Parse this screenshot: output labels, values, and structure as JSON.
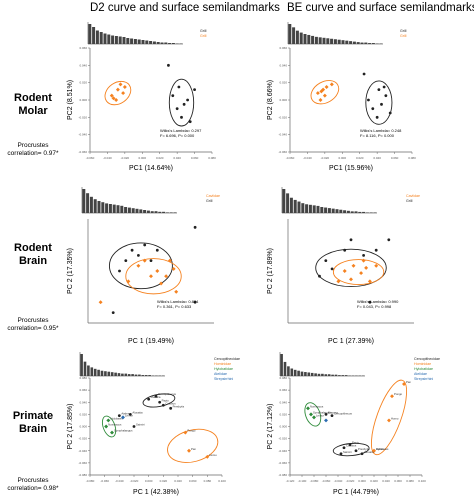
{
  "column_titles": [
    "D2 curve and surface semilandmarks",
    "BE curve and surface semilandmarks"
  ],
  "rows": [
    {
      "title_line1": "Rodent",
      "title_line2": "Molar",
      "corr_line1": "Procrustes",
      "corr_line2": "correlation= 0.97*"
    },
    {
      "title_line1": "Rodent",
      "title_line2": "Brain",
      "corr_line1": "Procrustes",
      "corr_line2": "correlation= 0.95*"
    },
    {
      "title_line1": "Primate",
      "title_line2": "Brain",
      "corr_line1": "Procrustes",
      "corr_line2": "correlation= 0.98*"
    }
  ],
  "colors": {
    "orange": "#f58220",
    "black": "#222222",
    "blue": "#2b6cb0",
    "green": "#2e8b3a",
    "axis": "#666666"
  },
  "chart_data": [
    {
      "type": "scatter",
      "panel": "rodent-molar-d2",
      "xlabel": "PC1 (14.64%)",
      "ylabel": "PC2 (8.51%)",
      "xlim": [
        -0.06,
        0.08
      ],
      "ylim": [
        -0.06,
        0.06
      ],
      "xticks": [
        "-0.060",
        "-0.040",
        "-0.020",
        "0.000",
        "0.020",
        "0.040",
        "0.060",
        "0.080"
      ],
      "yticks": [
        "0.060",
        "0.040",
        "0.020",
        "0.000",
        "-0.020",
        "-0.040",
        "-0.060"
      ],
      "legend": [
        "Grill",
        "Grill"
      ],
      "annotation_line1": "Wilks's Lambda= 0.297",
      "annotation_line2": "F= 6.696, P= 0.000",
      "series": [
        {
          "color": "orange",
          "points": [
            [
              -0.035,
              0.005
            ],
            [
              -0.03,
              0.0
            ],
            [
              -0.028,
              0.012
            ],
            [
              -0.025,
              0.018
            ],
            [
              -0.022,
              0.008
            ],
            [
              -0.02,
              0.015
            ],
            [
              -0.033,
              0.002
            ]
          ]
        },
        {
          "color": "black",
          "points": [
            [
              0.035,
              0.005
            ],
            [
              0.04,
              -0.01
            ],
            [
              0.045,
              -0.02
            ],
            [
              0.052,
              0.0
            ],
            [
              0.048,
              -0.005
            ],
            [
              0.042,
              0.015
            ],
            [
              0.06,
              0.012
            ],
            [
              0.055,
              -0.025
            ],
            [
              0.03,
              0.04
            ]
          ]
        }
      ],
      "ellipses": [
        {
          "color": "orange",
          "cx": -0.028,
          "cy": 0.008,
          "rx": 0.016,
          "ry": 0.012,
          "angle": -35
        },
        {
          "color": "black",
          "cx": 0.045,
          "cy": -0.003,
          "rx": 0.014,
          "ry": 0.027,
          "angle": 0
        }
      ],
      "histogram": [
        40,
        34,
        27,
        24,
        21,
        19,
        17,
        16,
        15,
        14,
        12,
        11,
        10,
        9,
        8,
        7,
        6,
        5,
        4,
        3,
        3,
        2,
        2,
        1,
        1
      ]
    },
    {
      "type": "scatter",
      "panel": "rodent-molar-be",
      "xlabel": "PC1 (15.96%)",
      "ylabel": "PC2 (8.66%)",
      "xlim": [
        -0.06,
        0.08
      ],
      "ylim": [
        -0.06,
        0.06
      ],
      "xticks": [
        "-0.060",
        "-0.040",
        "-0.020",
        "0.000",
        "0.020",
        "0.040",
        "0.060",
        "0.080"
      ],
      "yticks": [
        "0.060",
        "0.040",
        "0.020",
        "0.000",
        "-0.020",
        "-0.040",
        "-0.060"
      ],
      "legend": [
        "Grill",
        "Grill"
      ],
      "annotation_line1": "Wilks's Lambda= 0.248",
      "annotation_line2": "F= 8.116, P= 0.000",
      "series": [
        {
          "color": "orange",
          "points": [
            [
              -0.028,
              0.008
            ],
            [
              -0.025,
              0.0
            ],
            [
              -0.022,
              0.012
            ],
            [
              -0.018,
              0.015
            ],
            [
              -0.012,
              0.018
            ],
            [
              -0.02,
              0.005
            ],
            [
              -0.024,
              0.01
            ]
          ]
        },
        {
          "color": "black",
          "points": [
            [
              0.03,
              0.0
            ],
            [
              0.035,
              -0.01
            ],
            [
              0.04,
              -0.02
            ],
            [
              0.045,
              -0.005
            ],
            [
              0.05,
              0.005
            ],
            [
              0.042,
              0.012
            ],
            [
              0.055,
              -0.015
            ],
            [
              0.048,
              0.015
            ],
            [
              0.025,
              0.03
            ]
          ]
        }
      ],
      "ellipses": [
        {
          "color": "orange",
          "cx": -0.02,
          "cy": 0.009,
          "rx": 0.017,
          "ry": 0.012,
          "angle": -30
        },
        {
          "color": "black",
          "cx": 0.042,
          "cy": -0.003,
          "rx": 0.015,
          "ry": 0.025,
          "angle": 0
        }
      ],
      "histogram": [
        42,
        35,
        28,
        24,
        21,
        19,
        17,
        15,
        14,
        13,
        12,
        11,
        10,
        9,
        8,
        7,
        6,
        5,
        4,
        3,
        3,
        2,
        2,
        1,
        1
      ]
    },
    {
      "type": "scatter",
      "panel": "rodent-brain-d2",
      "xlabel": "PC 1 (19.49%)",
      "ylabel": "PC 2 (17.35%)",
      "xlim": [
        -0.05,
        0.05
      ],
      "ylim": [
        -0.05,
        0.05
      ],
      "xticks": [],
      "yticks": [],
      "legend": [
        "Caviidae",
        "Grill"
      ],
      "annotation_line1": "Wilks's Lambda= 0.824",
      "annotation_line2": "F= 0.361, P= 0.633",
      "series": [
        {
          "color": "orange",
          "points": [
            [
              -0.01,
              0.005
            ],
            [
              0.0,
              -0.005
            ],
            [
              0.005,
              0.0
            ],
            [
              0.012,
              -0.005
            ],
            [
              0.018,
              0.002
            ],
            [
              0.008,
              -0.012
            ],
            [
              -0.018,
              -0.01
            ],
            [
              0.02,
              -0.02
            ],
            [
              -0.04,
              -0.03
            ],
            [
              -0.005,
              0.01
            ],
            [
              0.015,
              0.01
            ]
          ]
        },
        {
          "color": "black",
          "points": [
            [
              -0.02,
              0.01
            ],
            [
              -0.015,
              0.02
            ],
            [
              -0.01,
              0.015
            ],
            [
              -0.005,
              0.025
            ],
            [
              0.005,
              0.02
            ],
            [
              0.0,
              0.01
            ],
            [
              0.035,
              0.042
            ],
            [
              -0.025,
              0.0
            ],
            [
              -0.03,
              -0.04
            ],
            [
              0.035,
              -0.03
            ]
          ]
        }
      ],
      "ellipses": [
        {
          "color": "black",
          "cx": -0.008,
          "cy": 0.005,
          "rx": 0.025,
          "ry": 0.022,
          "angle": 0
        },
        {
          "color": "orange",
          "cx": 0.002,
          "cy": -0.005,
          "rx": 0.022,
          "ry": 0.017,
          "angle": 0
        }
      ],
      "histogram": [
        40,
        33,
        27,
        23,
        20,
        18,
        16,
        15,
        14,
        13,
        12,
        10,
        9,
        8,
        7,
        6,
        5,
        4,
        3,
        3,
        2,
        2,
        1,
        1,
        1
      ]
    },
    {
      "type": "scatter",
      "panel": "rodent-brain-be",
      "xlabel": "PC 1 (27.39%)",
      "ylabel": "PC 2 (17.89%)",
      "xlim": [
        -0.05,
        0.05
      ],
      "ylim": [
        -0.05,
        0.05
      ],
      "xticks": [],
      "yticks": [],
      "legend": [
        "Caviidae",
        "Grill"
      ],
      "annotation_line1": "Wilks's Lambda= 0.990",
      "annotation_line2": "F= 0.043, P= 0.998",
      "series": [
        {
          "color": "orange",
          "points": [
            [
              -0.005,
              0.0
            ],
            [
              0.002,
              0.005
            ],
            [
              0.008,
              -0.002
            ],
            [
              0.012,
              0.003
            ],
            [
              0.0,
              -0.008
            ],
            [
              0.015,
              -0.01
            ],
            [
              -0.01,
              -0.01
            ],
            [
              0.02,
              0.005
            ],
            [
              0.01,
              0.01
            ]
          ]
        },
        {
          "color": "black",
          "points": [
            [
              -0.015,
              0.002
            ],
            [
              -0.02,
              0.01
            ],
            [
              -0.005,
              0.02
            ],
            [
              0.01,
              0.015
            ],
            [
              0.02,
              0.02
            ],
            [
              -0.025,
              -0.005
            ],
            [
              0.015,
              -0.03
            ],
            [
              0.0,
              0.03
            ],
            [
              0.03,
              0.03
            ]
          ]
        }
      ],
      "ellipses": [
        {
          "color": "black",
          "cx": 0.0,
          "cy": 0.003,
          "rx": 0.028,
          "ry": 0.018,
          "angle": 0
        },
        {
          "color": "orange",
          "cx": 0.006,
          "cy": -0.001,
          "rx": 0.02,
          "ry": 0.012,
          "angle": 0
        }
      ],
      "histogram": [
        44,
        36,
        28,
        24,
        21,
        18,
        16,
        15,
        14,
        13,
        11,
        10,
        9,
        8,
        7,
        6,
        5,
        4,
        3,
        3,
        2,
        2,
        1,
        1,
        1
      ]
    },
    {
      "type": "scatter",
      "panel": "primate-brain-d2",
      "xlabel": "PC 1 (42.38%)",
      "ylabel": "PC 2 (17.85%)",
      "xlim": [
        -0.08,
        0.1
      ],
      "ylim": [
        -0.08,
        0.08
      ],
      "xticks": [
        "-0.080",
        "-0.060",
        "-0.040",
        "-0.020",
        "0.000",
        "0.020",
        "0.040",
        "0.060",
        "0.080",
        "0.100"
      ],
      "yticks": [
        "0.080",
        "0.060",
        "0.040",
        "0.020",
        "0.000",
        "-0.020",
        "-0.040",
        "-0.060",
        "-0.080"
      ],
      "legend": [
        "Cercopithecidae",
        "Hominidae",
        "Hylobatidae",
        "Atelidae",
        "Strepsirrhini"
      ],
      "annotation_line1": "",
      "annotation_line2": "",
      "series": [
        {
          "color": "black",
          "points": [
            [
              0.0,
              0.045
            ],
            [
              0.01,
              0.05
            ],
            [
              0.015,
              0.04
            ],
            [
              0.02,
              0.035
            ],
            [
              0.03,
              0.03
            ],
            [
              -0.025,
              0.02
            ],
            [
              -0.04,
              0.018
            ],
            [
              -0.02,
              0.0
            ]
          ]
        },
        {
          "color": "orange",
          "points": [
            [
              0.05,
              -0.01
            ],
            [
              0.055,
              -0.04
            ],
            [
              0.08,
              -0.05
            ]
          ]
        },
        {
          "color": "green",
          "points": [
            [
              -0.055,
              0.01
            ],
            [
              -0.058,
              0.0
            ],
            [
              -0.05,
              -0.01
            ]
          ]
        },
        {
          "color": "blue",
          "points": [
            [
              -0.035,
              0.015
            ]
          ]
        }
      ],
      "ellipses": [
        {
          "color": "black",
          "cx": 0.014,
          "cy": 0.043,
          "rx": 0.022,
          "ry": 0.01,
          "angle": -10
        },
        {
          "color": "orange",
          "cx": 0.06,
          "cy": -0.032,
          "rx": 0.035,
          "ry": 0.026,
          "angle": -15
        },
        {
          "color": "green",
          "cx": -0.054,
          "cy": 0.0,
          "rx": 0.008,
          "ry": 0.018,
          "angle": -20
        }
      ],
      "point_labels": [
        "Macaca",
        "Cercopithecus",
        "Papio",
        "Colobus",
        "Presbytis",
        "Alouatta",
        "Ateles",
        "Saimiri",
        "Pongo",
        "Pan",
        "Homo",
        "Hylobates",
        "Nomascus",
        "Symphalangus",
        "Lemur"
      ],
      "histogram": [
        46,
        30,
        22,
        18,
        15,
        13,
        11,
        10,
        9,
        8,
        7,
        6,
        5,
        5,
        4,
        4,
        3,
        3,
        2,
        2,
        2,
        1,
        1,
        1,
        1
      ]
    },
    {
      "type": "scatter",
      "panel": "primate-brain-be",
      "xlabel": "PC 1 (44.79%)",
      "ylabel": "PC 2 (17.12%)",
      "xlim": [
        -0.12,
        0.1
      ],
      "ylim": [
        -0.08,
        0.08
      ],
      "xticks": [
        "-0.120",
        "-0.100",
        "-0.080",
        "-0.060",
        "-0.040",
        "-0.020",
        "0.000",
        "0.020",
        "0.040",
        "0.060",
        "0.080",
        "0.100"
      ],
      "yticks": [
        "0.080",
        "0.060",
        "0.040",
        "0.020",
        "0.000",
        "-0.020",
        "-0.040",
        "-0.060",
        "-0.080"
      ],
      "legend": [
        "Cercopithecidae",
        "Hominidae",
        "Hylobatidae",
        "Atelidae",
        "Strepsirrhini"
      ],
      "annotation_line1": "",
      "annotation_line2": "",
      "series": [
        {
          "color": "black",
          "points": [
            [
              -0.06,
              0.02
            ],
            [
              -0.05,
              0.018
            ],
            [
              -0.02,
              -0.03
            ],
            [
              -0.03,
              -0.035
            ],
            [
              -0.01,
              -0.04
            ],
            [
              0.0,
              -0.045
            ],
            [
              0.02,
              -0.04
            ],
            [
              -0.035,
              -0.045
            ]
          ]
        },
        {
          "color": "orange",
          "points": [
            [
              0.05,
              0.05
            ],
            [
              0.07,
              0.07
            ],
            [
              0.045,
              0.01
            ],
            [
              0.02,
              -0.04
            ]
          ]
        },
        {
          "color": "green",
          "points": [
            [
              -0.09,
              0.03
            ],
            [
              -0.085,
              0.02
            ],
            [
              -0.08,
              0.015
            ]
          ]
        },
        {
          "color": "blue",
          "points": [
            [
              -0.06,
              0.01
            ]
          ]
        }
      ],
      "ellipses": [
        {
          "color": "orange",
          "cx": 0.045,
          "cy": 0.015,
          "rx": 0.02,
          "ry": 0.065,
          "angle": 20
        },
        {
          "color": "black",
          "cx": -0.018,
          "cy": -0.038,
          "rx": 0.03,
          "ry": 0.01,
          "angle": -5
        },
        {
          "color": "green",
          "cx": -0.082,
          "cy": 0.02,
          "rx": 0.012,
          "ry": 0.02,
          "angle": -20
        }
      ],
      "point_labels": [
        "Macaca",
        "Cercopithecus",
        "Papio",
        "Colobus",
        "Presbytis",
        "Alouatta",
        "Ateles",
        "Saimiri",
        "Pongo",
        "Pan",
        "Homo",
        "Hylobates",
        "Nomascus",
        "Symphalangus",
        "Lemur"
      ],
      "histogram": [
        50,
        32,
        22,
        17,
        14,
        12,
        10,
        9,
        8,
        7,
        6,
        5,
        5,
        4,
        4,
        3,
        3,
        2,
        2,
        2,
        1,
        1,
        1,
        1,
        1
      ]
    }
  ]
}
